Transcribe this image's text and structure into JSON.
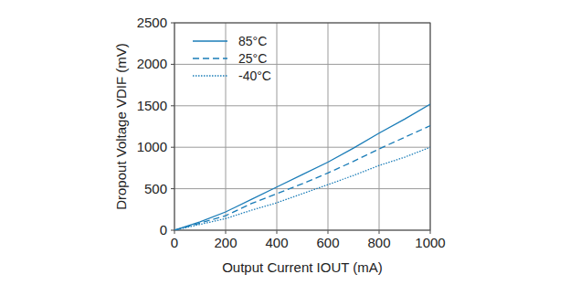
{
  "chart_data": {
    "type": "line",
    "x_label": "Output Current IOUT (mA)",
    "y_label": "Dropout Voltage VDIF (mV)",
    "x": [
      0,
      100,
      200,
      300,
      400,
      500,
      600,
      700,
      800,
      900,
      1000
    ],
    "series": [
      {
        "name": "85°C",
        "color": "#1b7db8",
        "line_style": "solid",
        "values": [
          0,
          100,
          220,
          370,
          520,
          670,
          820,
          990,
          1170,
          1340,
          1520
        ]
      },
      {
        "name": "25°C",
        "color": "#1b7db8",
        "line_style": "dashed",
        "values": [
          0,
          85,
          175,
          320,
          440,
          560,
          690,
          830,
          980,
          1120,
          1260
        ]
      },
      {
        "name": "-40°C",
        "color": "#1b7db8",
        "line_style": "dotted",
        "values": [
          0,
          70,
          140,
          240,
          330,
          440,
          550,
          660,
          780,
          880,
          1000
        ]
      }
    ],
    "xlim": [
      0,
      1000
    ],
    "xticks": [
      0,
      200,
      400,
      600,
      800,
      1000
    ],
    "ylim": [
      0,
      2500
    ],
    "yticks": [
      0,
      500,
      1000,
      1500,
      2000,
      2500
    ],
    "grid": true,
    "legend": "upper left"
  }
}
